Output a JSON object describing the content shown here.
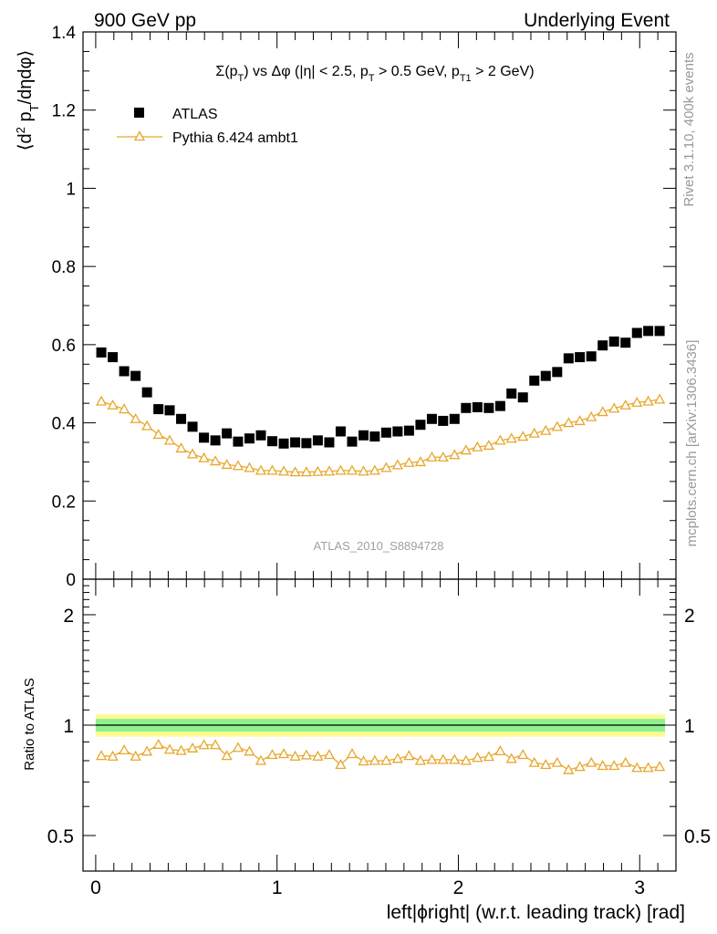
{
  "header": {
    "left": "900 GeV pp",
    "right": "Underlying Event"
  },
  "side_labels": {
    "rivet": "Rivet 3.1.10,  400k events",
    "source": "mcplots.cern.ch [arXiv:1306.3436]"
  },
  "chart_data": [
    {
      "type": "scatter",
      "title": "Σ(p_T) vs Δφ (|η| < 2.5, p_T > 0.5 GeV, p_T1 > 2 GeV)",
      "title_parts": {
        "a": "Σ(p",
        "a_sub": "T",
        "b": ") vs Δφ (|η| < 2.5, p",
        "b_sub": "T",
        "c": " > 0.5 GeV, p",
        "c_sub": "T1",
        "d": " > 2 GeV)"
      },
      "ylabel": "⟨d² p_T/dηdφ⟩",
      "ylabel_parts": {
        "a": "⟨d",
        "sup": "2",
        "b": " p",
        "sub": "T",
        "c": "/dηdφ⟩"
      },
      "watermark": "ATLAS_2010_S8894728",
      "xlim": [
        -0.07,
        3.2
      ],
      "ylim": [
        0,
        1.4
      ],
      "yticks": [
        "0",
        "0.2",
        "0.4",
        "0.6",
        "0.8",
        "1",
        "1.2",
        "1.4"
      ],
      "legend_position": "top-left",
      "x": [
        0.031,
        0.094,
        0.157,
        0.22,
        0.283,
        0.346,
        0.408,
        0.471,
        0.534,
        0.597,
        0.66,
        0.723,
        0.785,
        0.848,
        0.911,
        0.974,
        1.037,
        1.1,
        1.162,
        1.225,
        1.288,
        1.351,
        1.414,
        1.477,
        1.539,
        1.602,
        1.665,
        1.728,
        1.791,
        1.854,
        1.916,
        1.979,
        2.042,
        2.105,
        2.168,
        2.231,
        2.293,
        2.356,
        2.419,
        2.482,
        2.545,
        2.608,
        2.67,
        2.733,
        2.796,
        2.859,
        2.922,
        2.985,
        3.047,
        3.11
      ],
      "series": [
        {
          "name": "ATLAS",
          "color": "#000000",
          "marker": "square",
          "values": [
            0.58,
            0.568,
            0.532,
            0.52,
            0.478,
            0.435,
            0.432,
            0.41,
            0.39,
            0.362,
            0.355,
            0.373,
            0.352,
            0.36,
            0.368,
            0.353,
            0.347,
            0.35,
            0.348,
            0.355,
            0.35,
            0.378,
            0.352,
            0.368,
            0.365,
            0.375,
            0.378,
            0.38,
            0.395,
            0.41,
            0.405,
            0.41,
            0.438,
            0.44,
            0.438,
            0.443,
            0.475,
            0.465,
            0.508,
            0.52,
            0.53,
            0.565,
            0.568,
            0.57,
            0.598,
            0.608,
            0.605,
            0.63,
            0.635,
            0.635
          ]
        },
        {
          "name": "Pythia 6.424 ambt1",
          "color": "#e8a62b",
          "marker": "triangle-open",
          "values": [
            0.455,
            0.445,
            0.435,
            0.41,
            0.392,
            0.37,
            0.355,
            0.335,
            0.32,
            0.31,
            0.302,
            0.293,
            0.29,
            0.285,
            0.278,
            0.278,
            0.276,
            0.274,
            0.274,
            0.275,
            0.276,
            0.278,
            0.278,
            0.276,
            0.278,
            0.285,
            0.292,
            0.298,
            0.3,
            0.312,
            0.312,
            0.318,
            0.33,
            0.338,
            0.342,
            0.355,
            0.36,
            0.365,
            0.373,
            0.38,
            0.39,
            0.4,
            0.405,
            0.415,
            0.428,
            0.437,
            0.445,
            0.452,
            0.455,
            0.46
          ]
        }
      ]
    },
    {
      "type": "line",
      "ylabel": "Ratio to ATLAS",
      "xlabel": "left|ϕright| (w.r.t. leading track) [rad]",
      "xlim": [
        -0.07,
        3.2
      ],
      "ylim": [
        0.4,
        2.5
      ],
      "yscale": "log",
      "xticks": [
        "0",
        "1",
        "2",
        "3"
      ],
      "yticks": [
        "0.5",
        "1",
        "2"
      ],
      "reference_bands": {
        "inner": {
          "lower": 0.96,
          "upper": 1.04,
          "color": "#8ef08e"
        },
        "outer": {
          "lower": 0.93,
          "upper": 1.07,
          "color": "#fbfb93"
        }
      },
      "series": [
        {
          "name": "Pythia 6.424 ambt1",
          "color": "#e8a62b",
          "marker": "triangle-open",
          "values": [
            0.825,
            0.822,
            0.855,
            0.822,
            0.848,
            0.885,
            0.858,
            0.852,
            0.865,
            0.883,
            0.883,
            0.825,
            0.868,
            0.848,
            0.8,
            0.83,
            0.835,
            0.822,
            0.828,
            0.822,
            0.83,
            0.78,
            0.835,
            0.797,
            0.8,
            0.8,
            0.81,
            0.825,
            0.8,
            0.805,
            0.805,
            0.805,
            0.8,
            0.815,
            0.82,
            0.85,
            0.81,
            0.83,
            0.79,
            0.78,
            0.79,
            0.755,
            0.77,
            0.79,
            0.775,
            0.775,
            0.79,
            0.765,
            0.765,
            0.77
          ]
        }
      ]
    }
  ]
}
